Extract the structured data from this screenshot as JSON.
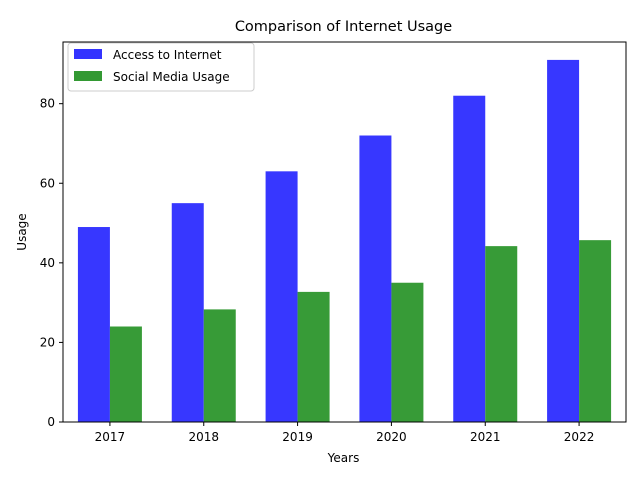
{
  "chart_data": {
    "type": "bar",
    "title": "Comparison of Internet Usage",
    "xlabel": "Years",
    "ylabel": "Usage",
    "categories": [
      "2017",
      "2018",
      "2019",
      "2020",
      "2021",
      "2022"
    ],
    "series": [
      {
        "name": "Access to Internet",
        "values": [
          49,
          55,
          63,
          72,
          82,
          91
        ],
        "color": "#3333ff"
      },
      {
        "name": "Social Media Usage",
        "values": [
          24,
          28.3,
          32.7,
          35,
          44.2,
          45.7
        ],
        "color": "#339933"
      }
    ],
    "ylim": [
      0,
      95.5
    ],
    "yticks": [
      0,
      20,
      40,
      60,
      80
    ],
    "grid": false,
    "legend": "top-left"
  }
}
